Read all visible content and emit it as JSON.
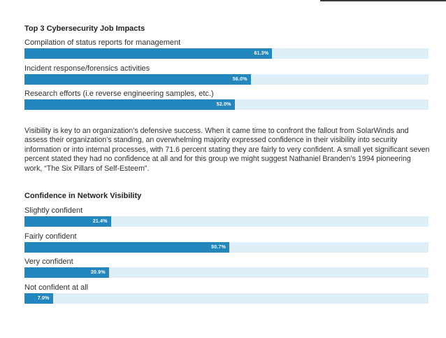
{
  "paragraph": "Visibility is key to an organization’s defensive success. When it came time to confront the fallout from SolarWinds and assess their organization’s standing, an overwhelming majority expressed confidence in their visibility into security information or into internal processes, with 71.6 percent stating they are fairly to very confident. A small yet significant seven percent stated they had no confidence at all and for this group we might suggest Nathaniel Branden’s 1994 pioneering work, “The Six Pillars of Self-Esteem”.",
  "colors": {
    "bar": "#2386bd",
    "track": "#ddeef8",
    "value_text": "#ffffff"
  },
  "chart_data": [
    {
      "type": "bar",
      "orientation": "horizontal",
      "title": "Top 3 Cybersecurity Job Impacts",
      "categories": [
        "Compilation of status reports for management",
        "Incident response/forensics activities",
        "Research efforts (i.e reverse engineering samples, etc.)"
      ],
      "values": [
        61.3,
        56.0,
        52.0
      ],
      "value_labels": [
        "61.3%",
        "56.0%",
        "52.0%"
      ],
      "xlim": [
        0,
        100
      ],
      "grid": false
    },
    {
      "type": "bar",
      "orientation": "horizontal",
      "title": "Confidence in Network Visibility",
      "categories": [
        "Slightly confident",
        "Fairly confident",
        "Very confident",
        "Not confident at all"
      ],
      "values": [
        21.4,
        50.7,
        20.9,
        7.0
      ],
      "value_labels": [
        "21.4%",
        "50.7%",
        "20.9%",
        "7.0%"
      ],
      "xlim": [
        0,
        100
      ],
      "grid": false
    }
  ]
}
